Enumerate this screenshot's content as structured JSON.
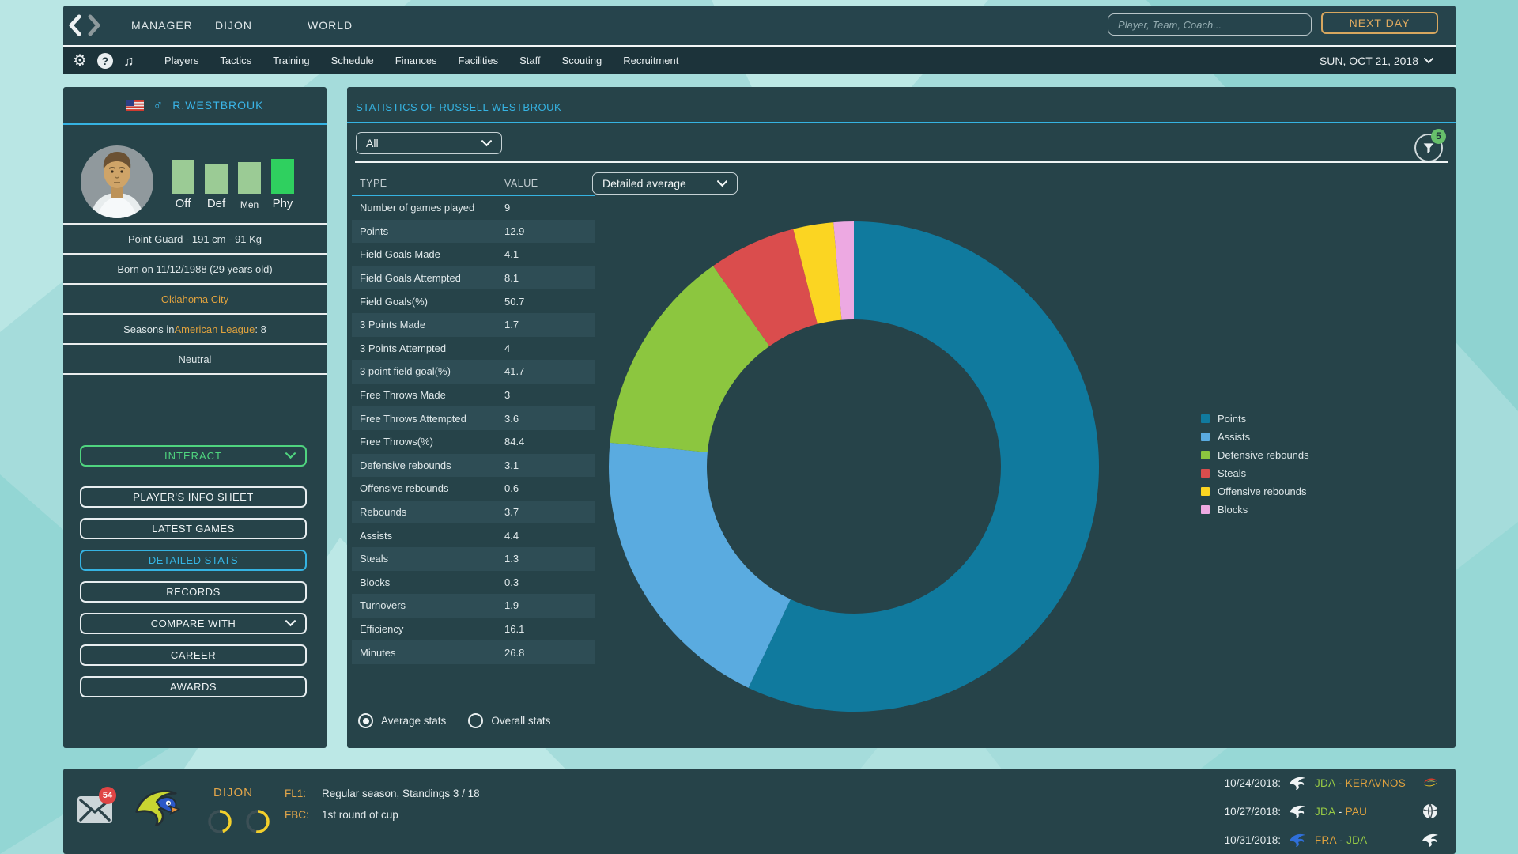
{
  "topbar": {
    "tabs": [
      "MANAGER",
      "DIJON",
      "WORLD"
    ],
    "search_placeholder": "Player, Team, Coach...",
    "next_day_label": "NEXT DAY"
  },
  "navbar": {
    "items": [
      "Players",
      "Tactics",
      "Training",
      "Schedule",
      "Finances",
      "Facilities",
      "Staff",
      "Scouting",
      "Recruitment"
    ],
    "date_label": "SUN, OCT 21, 2018"
  },
  "sidebar": {
    "flag": "USA",
    "gender_symbol": "♂",
    "player_name": "R.WESTBROUK",
    "attributes": [
      {
        "label": "Off",
        "percent": 90,
        "color": "#9bcb95"
      },
      {
        "label": "Def",
        "percent": 77,
        "color": "#9bcb95"
      },
      {
        "label": "Men",
        "percent": 83,
        "color": "#9bcb95"
      },
      {
        "label": "Phy",
        "percent": 92,
        "color": "#2fd05f"
      }
    ],
    "info_rows": {
      "position_size": "Point Guard - 191 cm - 91 Kg",
      "birth": "Born on 11/12/1988 (29 years old)",
      "city": "Oklahoma City",
      "seasons_prefix": "Seasons in ",
      "seasons_league": "American League",
      "seasons_suffix": ": 8",
      "mood": "Neutral"
    },
    "interact_label": "INTERACT",
    "buttons": [
      {
        "label": "PLAYER'S INFO SHEET",
        "active": false,
        "chevron": false
      },
      {
        "label": "LATEST GAMES",
        "active": false,
        "chevron": false
      },
      {
        "label": "DETAILED STATS",
        "active": true,
        "chevron": false
      },
      {
        "label": "RECORDS",
        "active": false,
        "chevron": false
      },
      {
        "label": "COMPARE WITH",
        "active": false,
        "chevron": true
      },
      {
        "label": "CAREER",
        "active": false,
        "chevron": false
      },
      {
        "label": "AWARDS",
        "active": false,
        "chevron": false
      }
    ]
  },
  "main": {
    "title": "STATISTICS OF RUSSELL WESTBROUK",
    "filter_all": "All",
    "filter_badge": "5",
    "stats_mode": "Detailed average",
    "table": {
      "columns": [
        "TYPE",
        "VALUE"
      ],
      "rows": [
        [
          "Number of games played",
          "9"
        ],
        [
          "Points",
          "12.9"
        ],
        [
          "Field Goals Made",
          "4.1"
        ],
        [
          "Field Goals Attempted",
          "8.1"
        ],
        [
          "Field Goals(%)",
          "50.7"
        ],
        [
          "3 Points Made",
          "1.7"
        ],
        [
          "3 Points Attempted",
          "4"
        ],
        [
          "3 point field goal(%)",
          "41.7"
        ],
        [
          "Free Throws Made",
          "3"
        ],
        [
          "Free Throws Attempted",
          "3.6"
        ],
        [
          "Free Throws(%)",
          "84.4"
        ],
        [
          "Defensive rebounds",
          "3.1"
        ],
        [
          "Offensive rebounds",
          "0.6"
        ],
        [
          "Rebounds",
          "3.7"
        ],
        [
          "Assists",
          "4.4"
        ],
        [
          "Steals",
          "1.3"
        ],
        [
          "Blocks",
          "0.3"
        ],
        [
          "Turnovers",
          "1.9"
        ],
        [
          "Efficiency",
          "16.1"
        ],
        [
          "Minutes",
          "26.8"
        ]
      ]
    },
    "radios": [
      {
        "label": "Average stats",
        "selected": true
      },
      {
        "label": "Overall stats",
        "selected": false
      }
    ]
  },
  "chart_data": {
    "type": "pie",
    "subtype": "donut",
    "title": "Detailed average",
    "labels": [
      "Points",
      "Assists",
      "Defensive rebounds",
      "Steals",
      "Offensive rebounds",
      "Blocks"
    ],
    "values": [
      12.9,
      4.4,
      3.1,
      1.3,
      0.6,
      0.3
    ],
    "colors": [
      "#107a9e",
      "#5aabe0",
      "#8cc63f",
      "#da4d4d",
      "#fbd522",
      "#eda9e2"
    ],
    "legend_position": "right",
    "start_angle_deg": 0,
    "direction": "clockwise"
  },
  "bottombar": {
    "mail_badge": "54",
    "team_name": "DIJON",
    "rings": [
      {
        "percent": 45,
        "color": "#f2cf2b"
      },
      {
        "percent": 52,
        "color": "#f2cf2b"
      }
    ],
    "competitions": [
      {
        "code": "FL1:",
        "text": "Regular season, Standings 3 / 18"
      },
      {
        "code": "FBC:",
        "text": "1st round of cup"
      }
    ],
    "schedule": [
      {
        "date": "10/24/2018:",
        "left_icon": "eagle-white",
        "home": "JDA",
        "home_color": "#97ca45",
        "sep": " - ",
        "away": "KERAVNOS",
        "away_color": "#e0a23e",
        "right_icon": "keravnos-logo"
      },
      {
        "date": "10/27/2018:",
        "left_icon": "eagle-white",
        "home": "JDA",
        "home_color": "#97ca45",
        "sep": " - ",
        "away": "PAU",
        "away_color": "#e0a23e",
        "right_icon": "pau-logo"
      },
      {
        "date": "10/31/2018:",
        "left_icon": "eagle-blue",
        "home": "FRA",
        "home_color": "#e0a23e",
        "sep": " - ",
        "away": "JDA",
        "away_color": "#97ca45",
        "right_icon": "eagle-white"
      }
    ]
  },
  "colors": {
    "accent_cyan": "#35b3e2",
    "accent_orange": "#e0a23e",
    "accent_green": "#4fd47f",
    "panel_bg": "#264349",
    "page_bg": "#a5dcdb"
  }
}
